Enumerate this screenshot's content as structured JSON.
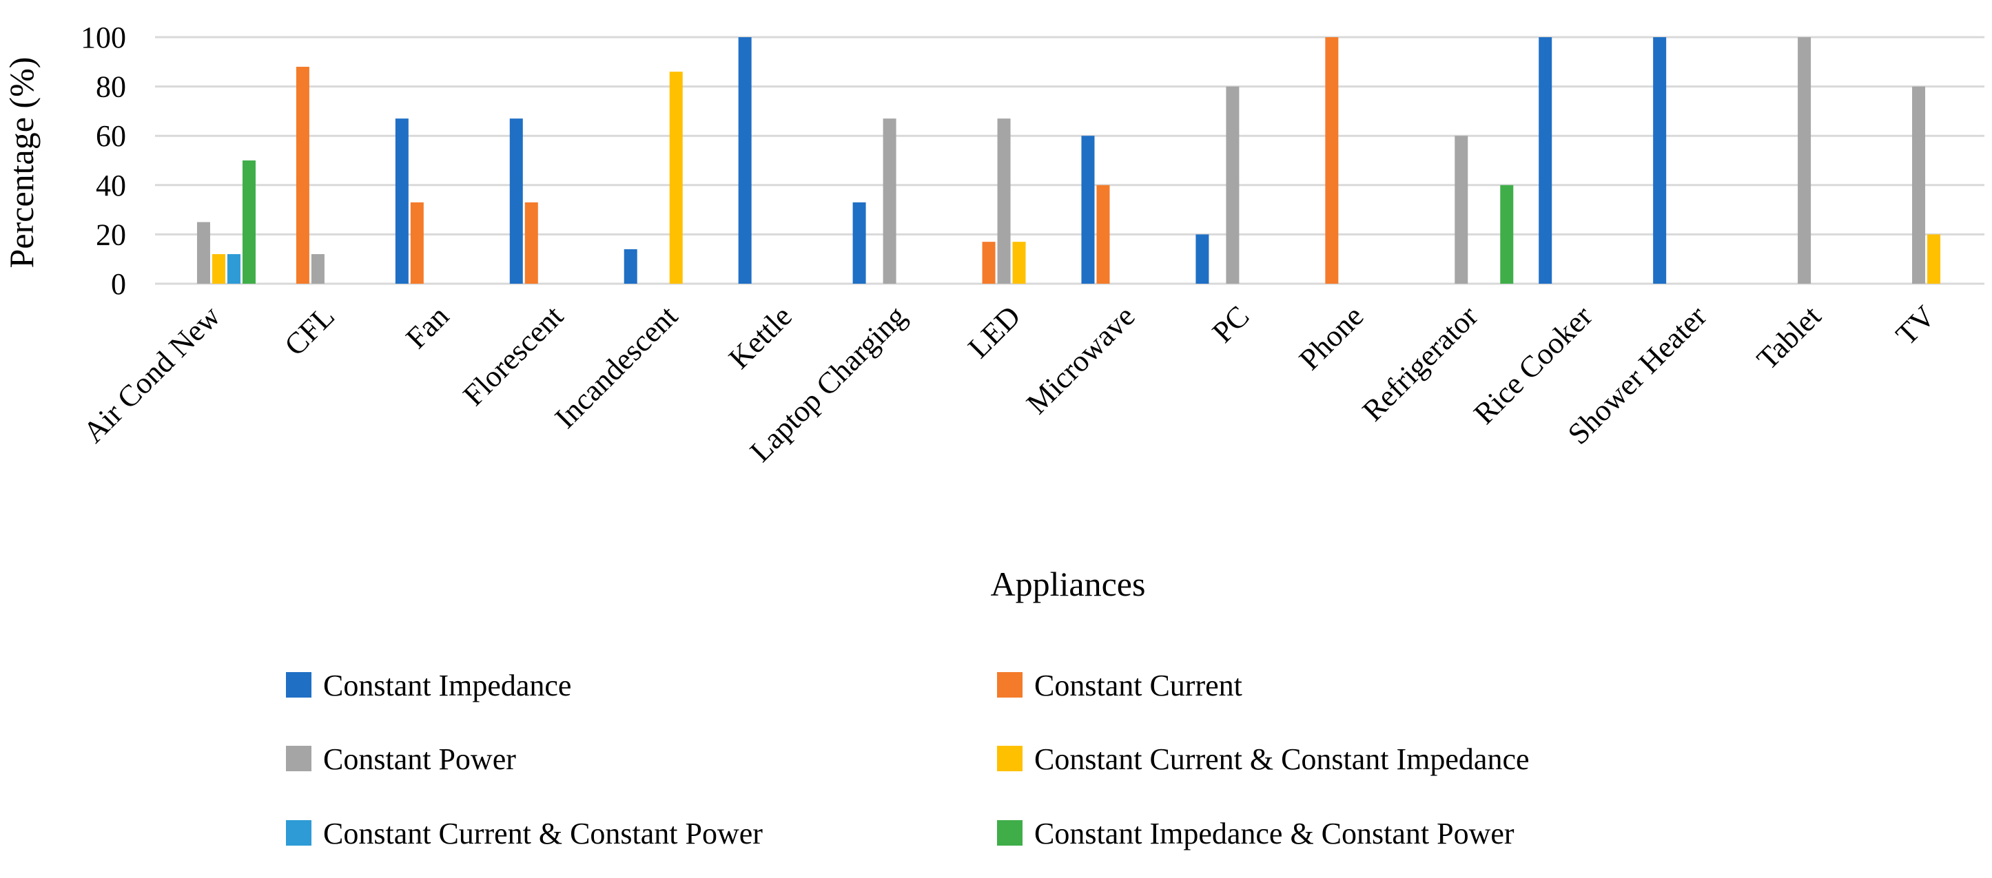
{
  "chart_data": {
    "type": "bar",
    "title": "",
    "xlabel": "Appliances",
    "ylabel": "Percentage (%)",
    "ylim": [
      0,
      100
    ],
    "yticks": [
      "0",
      "20",
      "40",
      "60",
      "80",
      "100"
    ],
    "grid": true,
    "legend_position": "bottom",
    "categories": [
      "Air Cond New",
      "CFL",
      "Fan",
      "Florescent",
      "Incandescent",
      "Kettle",
      "Laptop Charging",
      "LED",
      "Microwave",
      "PC",
      "Phone",
      "Refrigerator",
      "Rice Cooker",
      "Shower Heater",
      "Tablet",
      "TV"
    ],
    "series": [
      {
        "name": "Constant Impedance",
        "color": "#1f6fc5",
        "values": [
          0,
          0,
          67,
          67,
          14,
          100,
          33,
          0,
          60,
          20,
          0,
          0,
          100,
          100,
          0,
          0
        ]
      },
      {
        "name": "Constant Current",
        "color": "#f47b2a",
        "values": [
          0,
          88,
          33,
          33,
          0,
          0,
          0,
          17,
          40,
          0,
          100,
          0,
          0,
          0,
          0,
          0
        ]
      },
      {
        "name": "Constant Power",
        "color": "#a5a5a5",
        "values": [
          25,
          12,
          0,
          0,
          0,
          0,
          67,
          67,
          0,
          80,
          0,
          60,
          0,
          0,
          100,
          80
        ]
      },
      {
        "name": "Constant Current & Constant Impedance",
        "color": "#ffc000",
        "values": [
          12,
          0,
          0,
          0,
          86,
          0,
          0,
          17,
          0,
          0,
          0,
          0,
          0,
          0,
          0,
          20
        ]
      },
      {
        "name": "Constant Current & Constant Power",
        "color": "#2e9bd6",
        "values": [
          12,
          0,
          0,
          0,
          0,
          0,
          0,
          0,
          0,
          0,
          0,
          0,
          0,
          0,
          0,
          0
        ]
      },
      {
        "name": "Constant Impedance & Constant Power",
        "color": "#3fae49",
        "values": [
          50,
          0,
          0,
          0,
          0,
          0,
          0,
          0,
          0,
          0,
          0,
          40,
          0,
          0,
          0,
          0
        ]
      }
    ]
  }
}
